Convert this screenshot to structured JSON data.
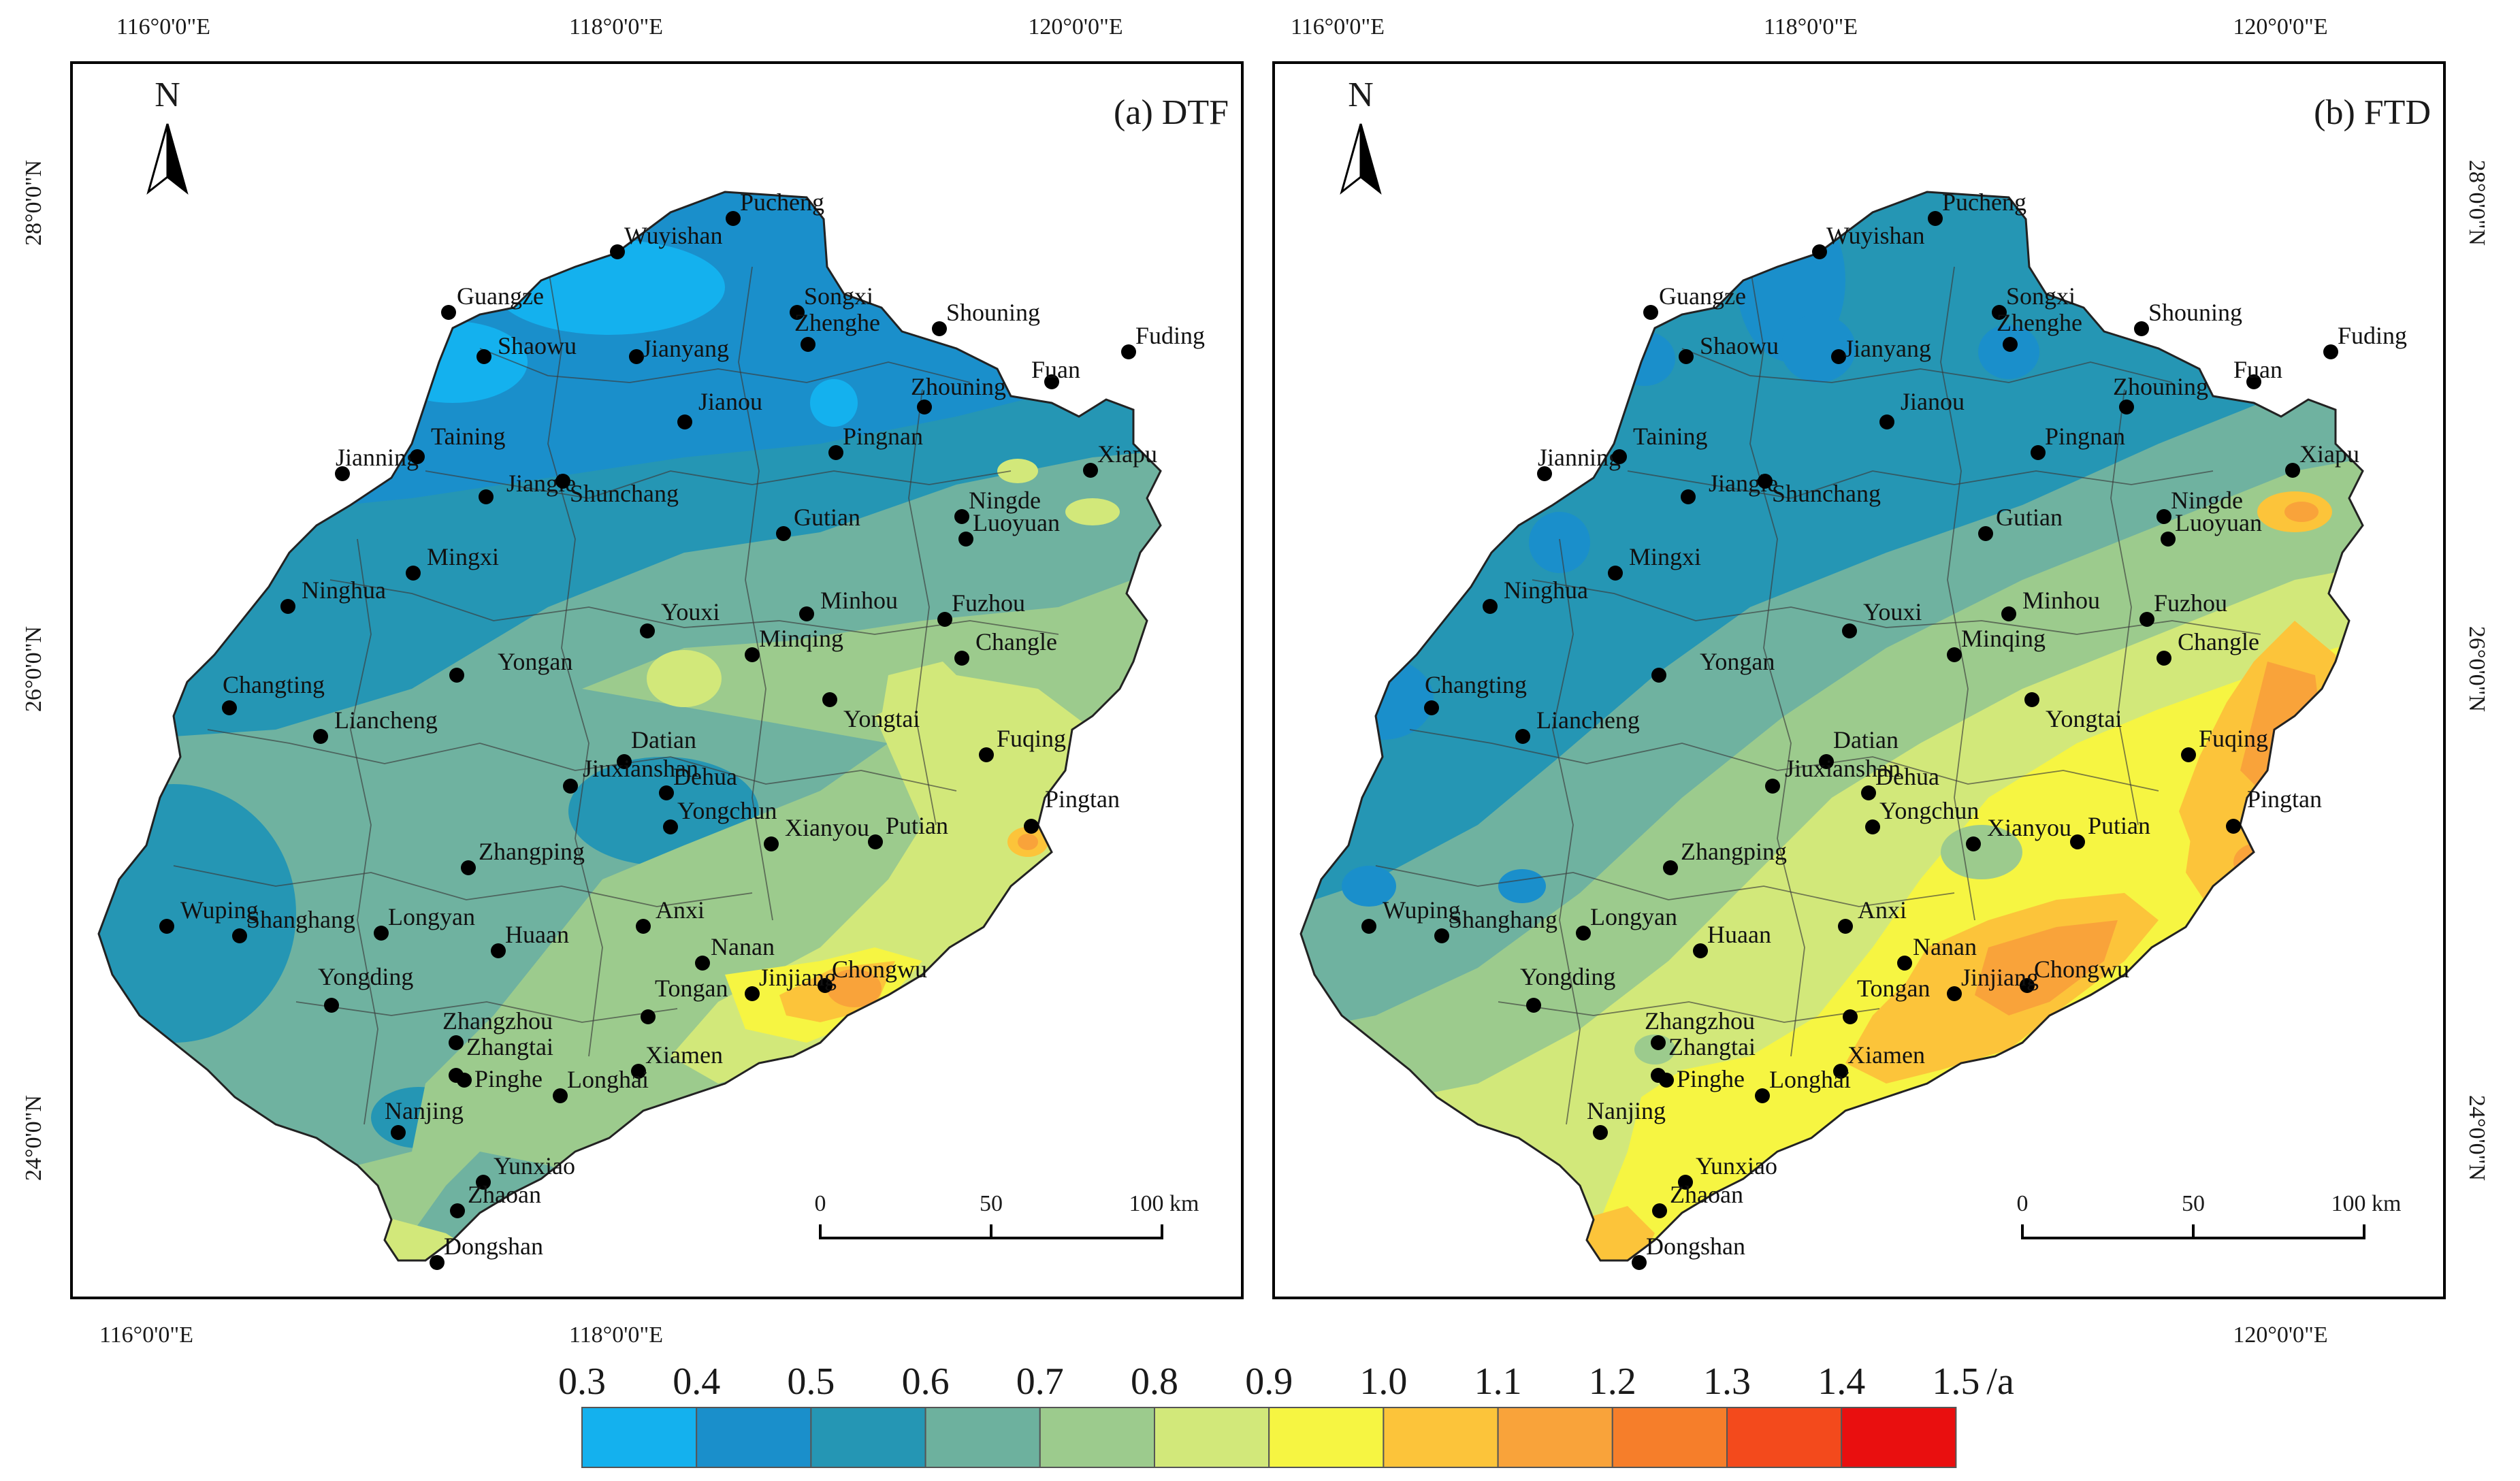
{
  "panels": [
    {
      "id": "dtf",
      "title": "(a) DTF",
      "variant": "dtf"
    },
    {
      "id": "ftd",
      "title": "(b) FTD",
      "variant": "ftd"
    }
  ],
  "north_label": "N",
  "axis_ticks": {
    "top_lon_left": [
      "116°0'0\"E",
      "118°0'0\"E",
      "120°0'0\"E"
    ],
    "top_lon_right": [
      "116°0'0\"E",
      "118°0'0\"E",
      "120°0'0\"E"
    ],
    "bottom_lon_left": [
      "116°0'0\"E",
      "118°0'0\"E"
    ],
    "bottom_lon_right": [
      "120°0'0\"E"
    ],
    "lat_left": [
      "28°0'0\"N",
      "26°0'0\"N",
      "24°0'0\"N"
    ],
    "lat_right": [
      "28°0'0\"N",
      "26°0'0\"N",
      "24°0'0\"N"
    ]
  },
  "scale_bar": {
    "ticks": [
      "0",
      "50",
      "100 km"
    ]
  },
  "legend": {
    "labels": [
      "0.3",
      "0.4",
      "0.5",
      "0.6",
      "0.7",
      "0.8",
      "0.9",
      "1.0",
      "1.1",
      "1.2",
      "1.3",
      "1.4",
      "1.5"
    ],
    "unit": "/a",
    "colors": [
      "#14b1ee",
      "#1a8fcb",
      "#2596b4",
      "#6db19e",
      "#9ccb8d",
      "#d2e87a",
      "#f6f542",
      "#fcc43a",
      "#f9a33a",
      "#f67e2a",
      "#f34a1c",
      "#e90f0f"
    ]
  },
  "cities": [
    {
      "name": "Pucheng"
    },
    {
      "name": "Wuyishan"
    },
    {
      "name": "Songxi"
    },
    {
      "name": "Guangze"
    },
    {
      "name": "Zhenghe"
    },
    {
      "name": "Shouning"
    },
    {
      "name": "Shaowu"
    },
    {
      "name": "Jianyang"
    },
    {
      "name": "Fuding"
    },
    {
      "name": "Zhouning"
    },
    {
      "name": "Fuan"
    },
    {
      "name": "Jianou"
    },
    {
      "name": "Pingnan"
    },
    {
      "name": "Xiapu"
    },
    {
      "name": "Jianning"
    },
    {
      "name": "Taining"
    },
    {
      "name": "Jiangle"
    },
    {
      "name": "Ningde"
    },
    {
      "name": "Luoyuan"
    },
    {
      "name": "Shunchang"
    },
    {
      "name": "Gutian"
    },
    {
      "name": "Mingxi"
    },
    {
      "name": "Ninghua"
    },
    {
      "name": "Youxi"
    },
    {
      "name": "Minhou"
    },
    {
      "name": "Fuzhou"
    },
    {
      "name": "Minqing"
    },
    {
      "name": "Changle"
    },
    {
      "name": "Yongan"
    },
    {
      "name": "Changting"
    },
    {
      "name": "Liancheng"
    },
    {
      "name": "Datian"
    },
    {
      "name": "Yongtai"
    },
    {
      "name": "Fuqing"
    },
    {
      "name": "Pingtan"
    },
    {
      "name": "Jiuxianshan"
    },
    {
      "name": "Dehua"
    },
    {
      "name": "Putian"
    },
    {
      "name": "Yongchun"
    },
    {
      "name": "Zhangping"
    },
    {
      "name": "Xianyou"
    },
    {
      "name": "Wuping"
    },
    {
      "name": "Longyan"
    },
    {
      "name": "Huaan"
    },
    {
      "name": "Anxi"
    },
    {
      "name": "Shanghang"
    },
    {
      "name": "Nanan"
    },
    {
      "name": "Chongwu"
    },
    {
      "name": "Yongding"
    },
    {
      "name": "Tongan"
    },
    {
      "name": "Jinjiang"
    },
    {
      "name": "Zhangzhou"
    },
    {
      "name": "Zhangtai"
    },
    {
      "name": "Xiamen"
    },
    {
      "name": "Pinghe"
    },
    {
      "name": "Nanjing"
    },
    {
      "name": "Longhai"
    },
    {
      "name": "Yunxiao"
    },
    {
      "name": "Zhaoan"
    },
    {
      "name": "Dongshan"
    }
  ]
}
